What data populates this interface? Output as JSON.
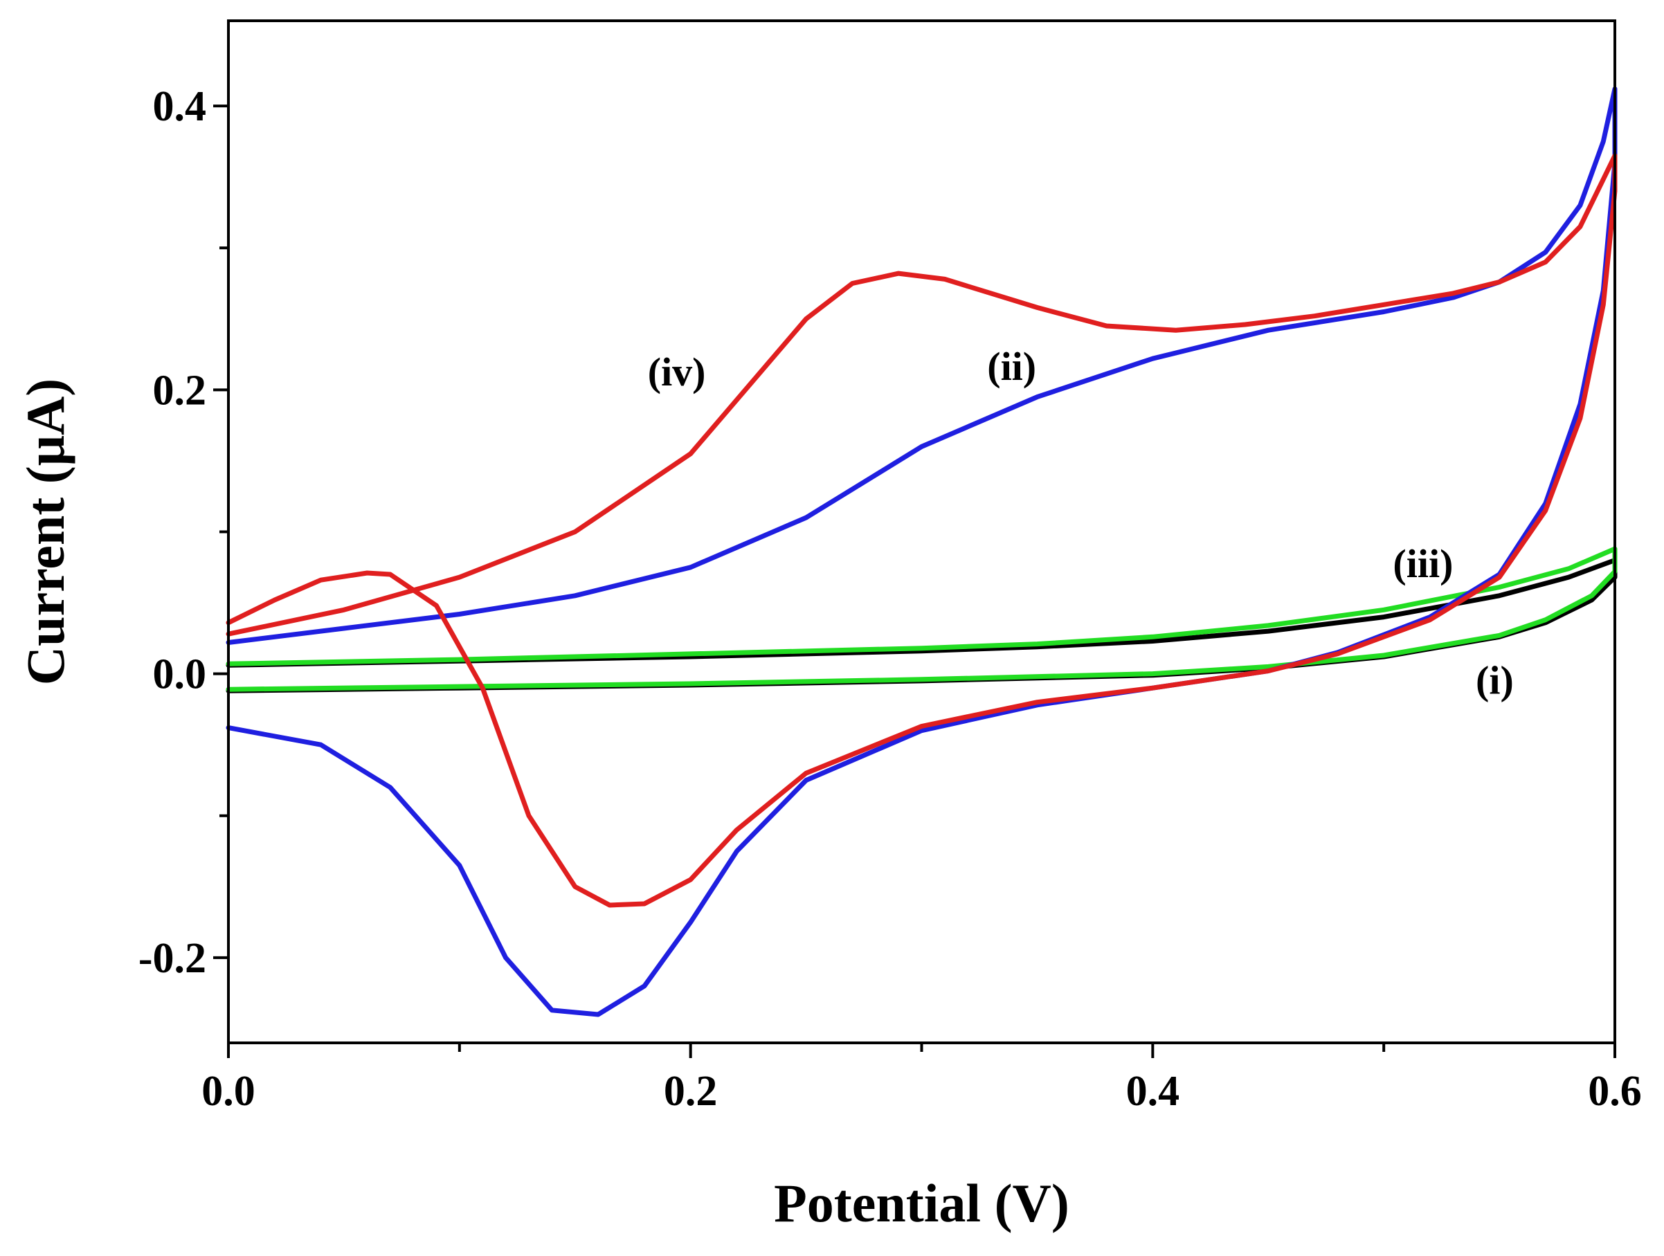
{
  "chart_data": {
    "type": "line",
    "title": "",
    "xlabel": "Potential (V)",
    "ylabel": "Current (μA)",
    "xlim": [
      0.0,
      0.6
    ],
    "ylim": [
      -0.26,
      0.46
    ],
    "xticks": [
      {
        "value": 0.0,
        "label": "0.0"
      },
      {
        "value": 0.2,
        "label": "0.2"
      },
      {
        "value": 0.4,
        "label": "0.4"
      },
      {
        "value": 0.6,
        "label": "0.6"
      }
    ],
    "yticks": [
      {
        "value": -0.2,
        "label": "-0.2"
      },
      {
        "value": 0.0,
        "label": "0.0"
      },
      {
        "value": 0.2,
        "label": "0.2"
      },
      {
        "value": 0.4,
        "label": "0.4"
      }
    ],
    "x_minor_ticks": [
      0.1,
      0.3,
      0.5
    ],
    "y_minor_ticks": [
      -0.1,
      0.1,
      0.3
    ],
    "grid": false,
    "series": [
      {
        "name": "(i)",
        "color": "#000000",
        "points": [
          [
            0.0,
            0.006
          ],
          [
            0.1,
            0.009
          ],
          [
            0.2,
            0.012
          ],
          [
            0.3,
            0.016
          ],
          [
            0.35,
            0.019
          ],
          [
            0.4,
            0.023
          ],
          [
            0.45,
            0.03
          ],
          [
            0.5,
            0.04
          ],
          [
            0.55,
            0.055
          ],
          [
            0.58,
            0.068
          ],
          [
            0.6,
            0.08
          ],
          [
            0.6,
            0.068
          ],
          [
            0.59,
            0.052
          ],
          [
            0.57,
            0.036
          ],
          [
            0.55,
            0.026
          ],
          [
            0.5,
            0.012
          ],
          [
            0.45,
            0.004
          ],
          [
            0.4,
            -0.001
          ],
          [
            0.3,
            -0.005
          ],
          [
            0.2,
            -0.008
          ],
          [
            0.1,
            -0.01
          ],
          [
            0.0,
            -0.012
          ]
        ]
      },
      {
        "name": "(iii)",
        "color": "#22dd22",
        "points": [
          [
            0.0,
            0.007
          ],
          [
            0.1,
            0.01
          ],
          [
            0.2,
            0.014
          ],
          [
            0.3,
            0.018
          ],
          [
            0.35,
            0.021
          ],
          [
            0.4,
            0.026
          ],
          [
            0.45,
            0.034
          ],
          [
            0.5,
            0.045
          ],
          [
            0.55,
            0.061
          ],
          [
            0.58,
            0.074
          ],
          [
            0.6,
            0.088
          ],
          [
            0.6,
            0.072
          ],
          [
            0.59,
            0.055
          ],
          [
            0.57,
            0.038
          ],
          [
            0.55,
            0.027
          ],
          [
            0.5,
            0.013
          ],
          [
            0.45,
            0.005
          ],
          [
            0.4,
            0.0
          ],
          [
            0.3,
            -0.004
          ],
          [
            0.2,
            -0.007
          ],
          [
            0.1,
            -0.009
          ],
          [
            0.0,
            -0.011
          ]
        ]
      },
      {
        "name": "(ii)",
        "color": "#1f1fe0",
        "points": [
          [
            0.0,
            0.022
          ],
          [
            0.05,
            0.032
          ],
          [
            0.1,
            0.042
          ],
          [
            0.15,
            0.055
          ],
          [
            0.2,
            0.075
          ],
          [
            0.25,
            0.11
          ],
          [
            0.3,
            0.16
          ],
          [
            0.35,
            0.195
          ],
          [
            0.4,
            0.222
          ],
          [
            0.45,
            0.242
          ],
          [
            0.5,
            0.255
          ],
          [
            0.53,
            0.265
          ],
          [
            0.55,
            0.276
          ],
          [
            0.57,
            0.297
          ],
          [
            0.585,
            0.33
          ],
          [
            0.595,
            0.375
          ],
          [
            0.6,
            0.412
          ],
          [
            0.6,
            0.36
          ],
          [
            0.595,
            0.27
          ],
          [
            0.585,
            0.19
          ],
          [
            0.57,
            0.12
          ],
          [
            0.55,
            0.07
          ],
          [
            0.52,
            0.04
          ],
          [
            0.48,
            0.015
          ],
          [
            0.45,
            0.002
          ],
          [
            0.4,
            -0.01
          ],
          [
            0.35,
            -0.022
          ],
          [
            0.3,
            -0.04
          ],
          [
            0.25,
            -0.075
          ],
          [
            0.22,
            -0.125
          ],
          [
            0.2,
            -0.175
          ],
          [
            0.18,
            -0.22
          ],
          [
            0.16,
            -0.24
          ],
          [
            0.14,
            -0.237
          ],
          [
            0.12,
            -0.2
          ],
          [
            0.1,
            -0.135
          ],
          [
            0.07,
            -0.08
          ],
          [
            0.04,
            -0.05
          ],
          [
            0.0,
            -0.038
          ]
        ]
      },
      {
        "name": "(iv)",
        "color": "#e01f1f",
        "points": [
          [
            0.0,
            0.028
          ],
          [
            0.05,
            0.045
          ],
          [
            0.1,
            0.068
          ],
          [
            0.15,
            0.1
          ],
          [
            0.2,
            0.155
          ],
          [
            0.25,
            0.25
          ],
          [
            0.27,
            0.275
          ],
          [
            0.29,
            0.282
          ],
          [
            0.31,
            0.278
          ],
          [
            0.35,
            0.258
          ],
          [
            0.38,
            0.245
          ],
          [
            0.41,
            0.242
          ],
          [
            0.44,
            0.246
          ],
          [
            0.47,
            0.252
          ],
          [
            0.5,
            0.26
          ],
          [
            0.53,
            0.268
          ],
          [
            0.55,
            0.276
          ],
          [
            0.57,
            0.29
          ],
          [
            0.585,
            0.315
          ],
          [
            0.6,
            0.365
          ],
          [
            0.6,
            0.34
          ],
          [
            0.595,
            0.26
          ],
          [
            0.585,
            0.18
          ],
          [
            0.57,
            0.115
          ],
          [
            0.55,
            0.068
          ],
          [
            0.52,
            0.038
          ],
          [
            0.48,
            0.014
          ],
          [
            0.45,
            0.002
          ],
          [
            0.4,
            -0.01
          ],
          [
            0.35,
            -0.02
          ],
          [
            0.3,
            -0.037
          ],
          [
            0.25,
            -0.07
          ],
          [
            0.22,
            -0.11
          ],
          [
            0.2,
            -0.145
          ],
          [
            0.18,
            -0.162
          ],
          [
            0.165,
            -0.163
          ],
          [
            0.15,
            -0.15
          ],
          [
            0.13,
            -0.1
          ],
          [
            0.11,
            -0.01
          ],
          [
            0.09,
            0.048
          ],
          [
            0.07,
            0.07
          ],
          [
            0.06,
            0.071
          ],
          [
            0.04,
            0.066
          ],
          [
            0.02,
            0.052
          ],
          [
            0.0,
            0.036
          ]
        ]
      }
    ],
    "annotations": [
      {
        "text": "(iv)",
        "x": 0.194,
        "y": 0.203
      },
      {
        "text": "(ii)",
        "x": 0.339,
        "y": 0.207
      },
      {
        "text": "(iii)",
        "x": 0.517,
        "y": 0.068
      },
      {
        "text": "(i)",
        "x": 0.548,
        "y": -0.014
      }
    ]
  }
}
